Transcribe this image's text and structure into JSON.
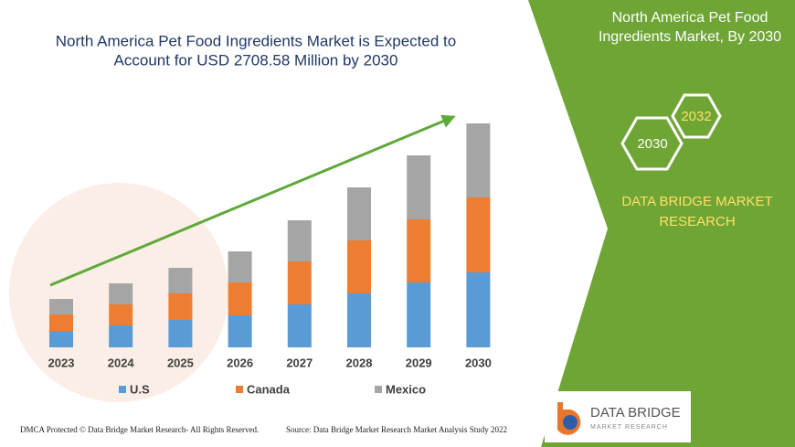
{
  "chart_data": {
    "type": "stacked-bar",
    "title": [
      "North America Pet Food Ingredients Market is Expected to",
      "Account for USD 2708.58 Million by 2030"
    ],
    "categories": [
      "2023",
      "2024",
      "2025",
      "2026",
      "2027",
      "2028",
      "2029",
      "2030"
    ],
    "series": [
      {
        "name": "U.S",
        "color": "#5b9bd5",
        "values": [
          18,
          24,
          30,
          35,
          47,
          59,
          71,
          82
        ]
      },
      {
        "name": "Canada",
        "color": "#ed7d31",
        "values": [
          18,
          23,
          29,
          36,
          47,
          58,
          69,
          82
        ]
      },
      {
        "name": "Mexico",
        "color": "#a5a5a5",
        "values": [
          17,
          23,
          28,
          34,
          45,
          58,
          70,
          81
        ]
      }
    ]
  },
  "panel": {
    "title": [
      "North America Pet Food",
      "Ingredients Market, By 2030"
    ],
    "hexagons": [
      "2030",
      "2032"
    ],
    "brand": [
      "DATA BRIDGE MARKET",
      "RESEARCH"
    ]
  },
  "logo": {
    "name": "DATA BRIDGE",
    "tagline": "MARKET RESEARCH"
  },
  "footer": {
    "left": "DMCA Protected © Data Bridge Market Research- All Rights Reserved.",
    "right": "Source: Data Bridge Market Research Market Analysis Study 2022"
  }
}
